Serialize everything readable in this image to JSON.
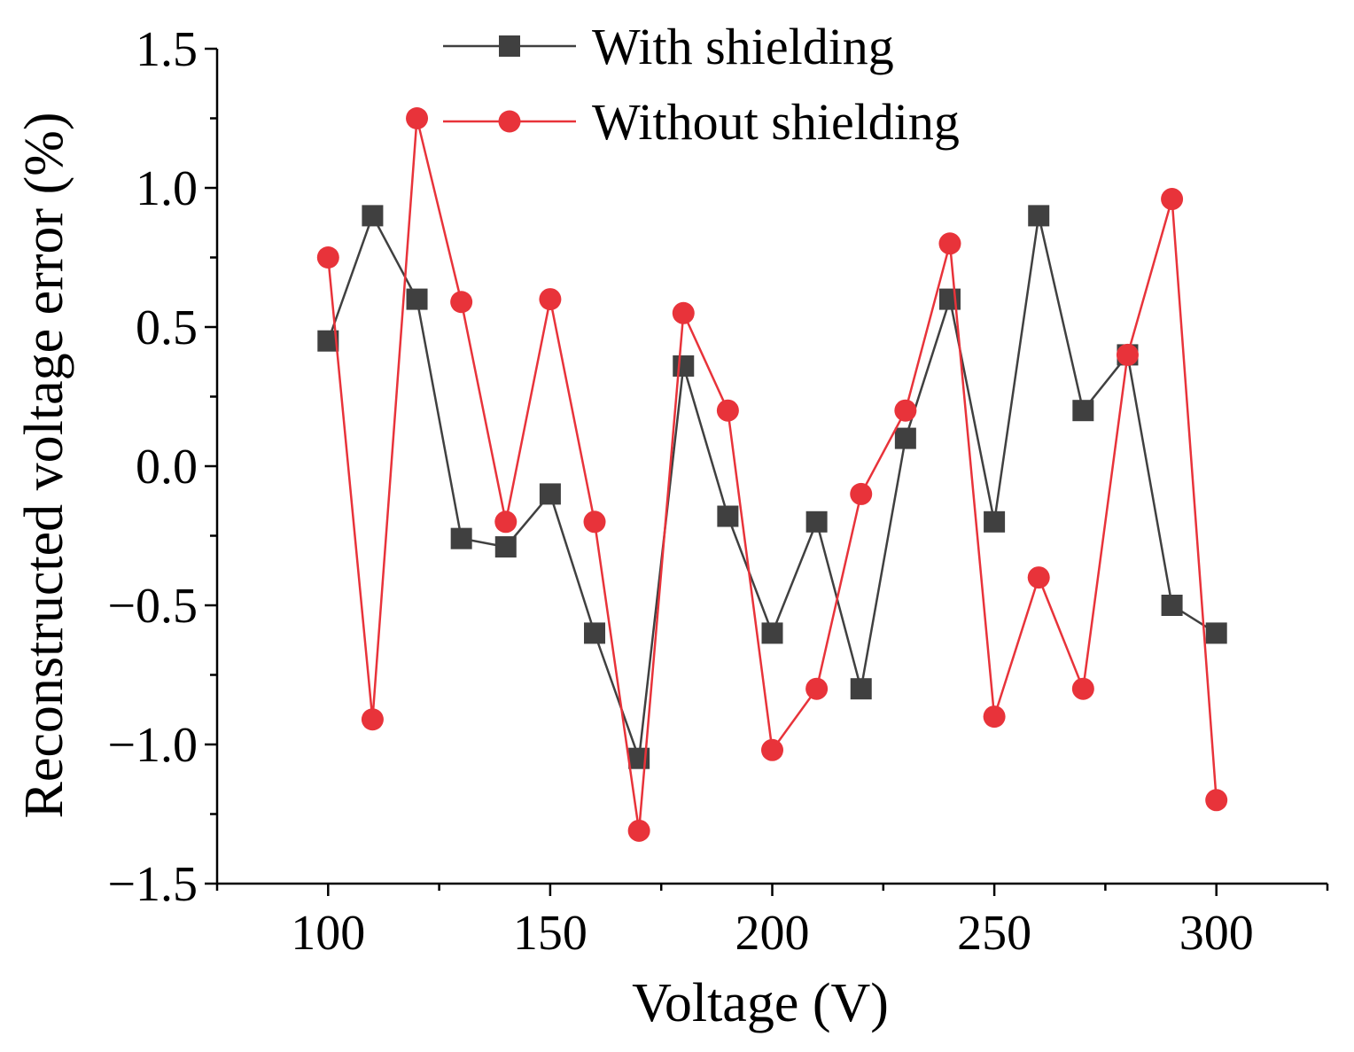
{
  "chart_data": {
    "type": "line",
    "title": "",
    "xlabel": "Voltage (V)",
    "ylabel": "Reconstructed voltage error (%)",
    "xlim": [
      75,
      325
    ],
    "ylim": [
      -1.5,
      1.5
    ],
    "xticks": [
      100,
      150,
      200,
      250,
      300
    ],
    "xtick_labels": [
      "100",
      "150",
      "200",
      "250",
      "300"
    ],
    "yticks": [
      -1.5,
      -1.0,
      -0.5,
      0.0,
      0.5,
      1.0,
      1.5
    ],
    "ytick_labels": [
      "−1.5",
      "−1.0",
      "−0.5",
      "0.0",
      "0.5",
      "1.0",
      "1.5"
    ],
    "x": [
      100,
      110,
      120,
      130,
      140,
      150,
      160,
      170,
      180,
      190,
      200,
      210,
      220,
      230,
      240,
      250,
      260,
      270,
      280,
      290,
      300
    ],
    "series": [
      {
        "name": "With shielding",
        "color": "#404040",
        "marker": "square",
        "values": [
          0.45,
          0.9,
          0.6,
          -0.26,
          -0.29,
          -0.1,
          -0.6,
          -1.05,
          0.36,
          -0.18,
          -0.6,
          -0.2,
          -0.8,
          0.1,
          0.6,
          -0.2,
          0.9,
          0.2,
          0.4,
          -0.5,
          -0.6
        ]
      },
      {
        "name": "Without shielding",
        "color": "#e8333a",
        "marker": "circle",
        "values": [
          0.75,
          -0.91,
          1.25,
          0.59,
          -0.2,
          0.6,
          -0.2,
          -1.31,
          0.55,
          0.2,
          -1.02,
          -0.8,
          -0.1,
          0.2,
          0.8,
          -0.9,
          -0.4,
          -0.8,
          0.4,
          0.96,
          -1.2
        ]
      }
    ],
    "legend_position": "top"
  }
}
